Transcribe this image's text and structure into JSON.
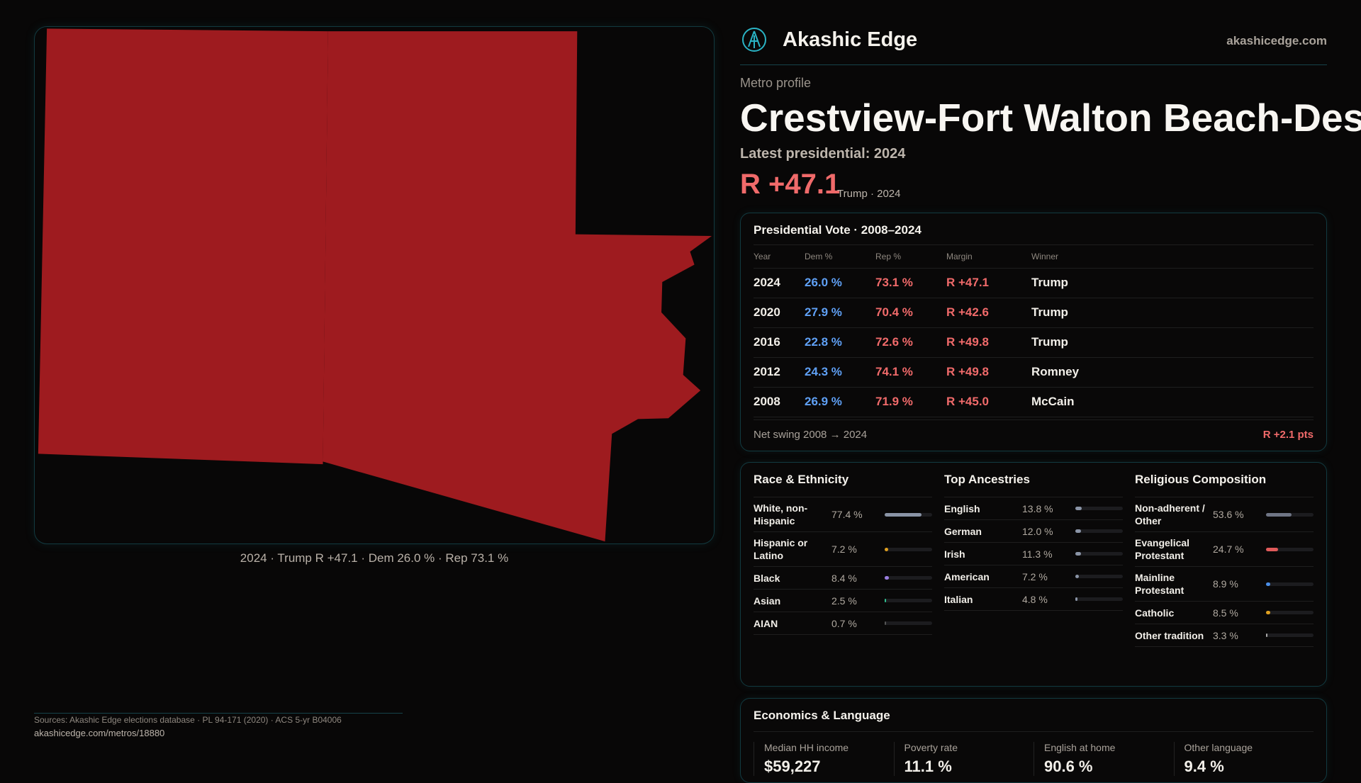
{
  "map": {
    "fill": "#9e1b1f",
    "caption": "2024 · Trump R +47.1 · Dem 26.0 % · Rep 73.1 %"
  },
  "header": {
    "brand": "Akashic Edge",
    "site": "akashicedge.com",
    "logo_icon": "akashic-edge-logo"
  },
  "profile": {
    "kicker": "Metro profile",
    "title": "Crestview-Fort Walton Beach-Destin",
    "latest": "Latest presidential: 2024",
    "margin": "R +47.1",
    "margin_sub": "Trump · 2024"
  },
  "presidential": {
    "title": "Presidential Vote · 2008–2024",
    "columns": [
      "Year",
      "Dem %",
      "Rep %",
      "Margin",
      "Winner"
    ],
    "rows": [
      [
        "2024",
        "26.0 %",
        "73.1 %",
        "R +47.1",
        "Trump"
      ],
      [
        "2020",
        "27.9 %",
        "70.4 %",
        "R +42.6",
        "Trump"
      ],
      [
        "2016",
        "22.8 %",
        "72.6 %",
        "R +49.8",
        "Trump"
      ],
      [
        "2012",
        "24.3 %",
        "74.1 %",
        "R +49.8",
        "Romney"
      ],
      [
        "2008",
        "26.9 %",
        "71.9 %",
        "R +45.0",
        "McCain"
      ]
    ],
    "swing_label": "Net swing 2008 → 2024",
    "swing_value": "R +2.1 pts"
  },
  "race": {
    "title": "Race & Ethnicity",
    "items": [
      {
        "label": "White, non-Hispanic",
        "pct": "77.4 %",
        "value": 77.4,
        "color": "#8a94a6"
      },
      {
        "label": "Hispanic or Latino",
        "pct": "7.2 %",
        "value": 7.2,
        "color": "#e0a020"
      },
      {
        "label": "Black",
        "pct": "8.4 %",
        "value": 8.4,
        "color": "#9a7ee0"
      },
      {
        "label": "Asian",
        "pct": "2.5 %",
        "value": 2.5,
        "color": "#2fbf8f"
      },
      {
        "label": "AIAN",
        "pct": "0.7 %",
        "value": 0.7,
        "color": "#555"
      }
    ]
  },
  "ancestry": {
    "title": "Top Ancestries",
    "items": [
      {
        "label": "English",
        "pct": "13.8 %",
        "value": 13.8,
        "color": "#8a94a6"
      },
      {
        "label": "German",
        "pct": "12.0 %",
        "value": 12.0,
        "color": "#8a94a6"
      },
      {
        "label": "Irish",
        "pct": "11.3 %",
        "value": 11.3,
        "color": "#8a94a6"
      },
      {
        "label": "American",
        "pct": "7.2 %",
        "value": 7.2,
        "color": "#8a94a6"
      },
      {
        "label": "Italian",
        "pct": "4.8 %",
        "value": 4.8,
        "color": "#8a94a6"
      }
    ]
  },
  "religion": {
    "title": "Religious Composition",
    "items": [
      {
        "label": "Non-adherent / Other",
        "pct": "53.6 %",
        "value": 53.6,
        "color": "#6f7585"
      },
      {
        "label": "Evangelical Protestant",
        "pct": "24.7 %",
        "value": 24.7,
        "color": "#e05a5a"
      },
      {
        "label": "Mainline Protestant",
        "pct": "8.9 %",
        "value": 8.9,
        "color": "#4a8ee8"
      },
      {
        "label": "Catholic",
        "pct": "8.5 %",
        "value": 8.5,
        "color": "#e0a020"
      },
      {
        "label": "Other tradition",
        "pct": "3.3 %",
        "value": 3.3,
        "color": "#aaa"
      }
    ]
  },
  "economics": {
    "title": "Economics & Language",
    "stats": [
      {
        "label": "Median HH income",
        "value": "$59,227"
      },
      {
        "label": "Poverty rate",
        "value": "11.1 %"
      },
      {
        "label": "English at home",
        "value": "90.6 %"
      },
      {
        "label": "Other language",
        "value": "9.4 %"
      }
    ]
  },
  "footer": {
    "sources": "Sources: Akashic Edge elections database · PL 94-171 (2020) · ACS 5-yr B04006",
    "url": "akashicedge.com/metros/18880"
  }
}
